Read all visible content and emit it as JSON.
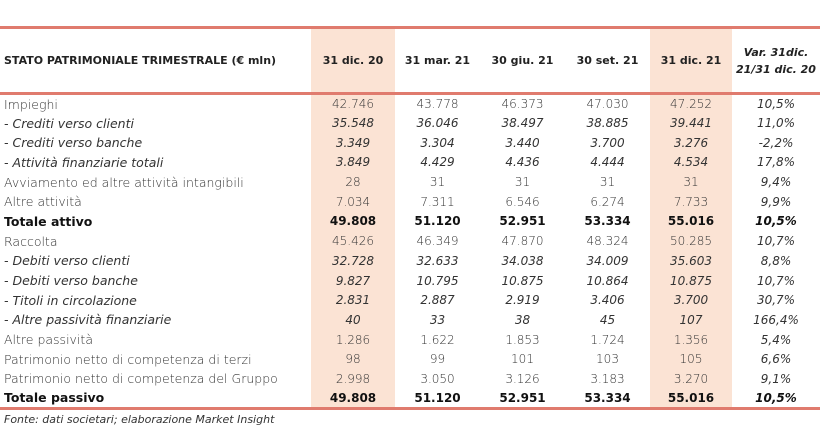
{
  "table": {
    "headers": [
      "STATO PATRIMONIALE TRIMESTRALE (€ mln)",
      "31 dic. 20",
      "31 mar. 21",
      "30 giu. 21",
      "30 set. 21",
      "31 dic. 21",
      "Var. 31dic. 21/31 dic. 20"
    ],
    "rows": [
      {
        "label": "Impieghi",
        "values": [
          "42.746",
          "43.778",
          "46.373",
          "47.030",
          "47.252",
          "10,5%"
        ],
        "style": "normal"
      },
      {
        "label": "- Crediti verso clienti",
        "values": [
          "35.548",
          "36.046",
          "38.497",
          "38.885",
          "39.441",
          "11,0%"
        ],
        "style": "sub"
      },
      {
        "label": "- Crediti verso banche",
        "values": [
          "3.349",
          "3.304",
          "3.440",
          "3.700",
          "3.276",
          "-2,2%"
        ],
        "style": "sub"
      },
      {
        "label": "- Attività finanziarie totali",
        "values": [
          "3.849",
          "4.429",
          "4.436",
          "4.444",
          "4.534",
          "17,8%"
        ],
        "style": "sub"
      },
      {
        "label": "Avviamento ed altre attività intangibili",
        "values": [
          "28",
          "31",
          "31",
          "31",
          "31",
          "9,4%"
        ],
        "style": "normal"
      },
      {
        "label": "Altre attività",
        "values": [
          "7.034",
          "7.311",
          "6.546",
          "6.274",
          "7.733",
          "9,9%"
        ],
        "style": "normal"
      },
      {
        "label": "Totale attivo",
        "values": [
          "49.808",
          "51.120",
          "52.951",
          "53.334",
          "55.016",
          "10,5%"
        ],
        "style": "total"
      },
      {
        "label": "Raccolta",
        "values": [
          "45.426",
          "46.349",
          "47.870",
          "48.324",
          "50.285",
          "10,7%"
        ],
        "style": "normal"
      },
      {
        "label": "- Debiti verso clienti",
        "values": [
          "32.728",
          "32.633",
          "34.038",
          "34.009",
          "35.603",
          "8,8%"
        ],
        "style": "sub"
      },
      {
        "label": "- Debiti verso banche",
        "values": [
          "9.827",
          "10.795",
          "10.875",
          "10.864",
          "10.875",
          "10,7%"
        ],
        "style": "sub"
      },
      {
        "label": "- Titoli in circolazione",
        "values": [
          "2.831",
          "2.887",
          "2.919",
          "3.406",
          "3.700",
          "30,7%"
        ],
        "style": "sub"
      },
      {
        "label": "- Altre passività finanziarie",
        "values": [
          "40",
          "33",
          "38",
          "45",
          "107",
          "166,4%"
        ],
        "style": "sub"
      },
      {
        "label": "Altre passività",
        "values": [
          "1.286",
          "1.622",
          "1.853",
          "1.724",
          "1.356",
          "5,4%"
        ],
        "style": "normal"
      },
      {
        "label": "Patrimonio netto di competenza di terzi",
        "values": [
          "98",
          "99",
          "101",
          "103",
          "105",
          "6,6%"
        ],
        "style": "normal"
      },
      {
        "label": "Patrimonio netto di competenza del Gruppo",
        "values": [
          "2.998",
          "3.050",
          "3.126",
          "3.183",
          "3.270",
          "9,1%"
        ],
        "style": "normal"
      },
      {
        "label": "Totale passivo",
        "values": [
          "49.808",
          "51.120",
          "52.951",
          "53.334",
          "55.016",
          "10,5%"
        ],
        "style": "total"
      }
    ]
  },
  "footnote": "Fonte: dati societari; elaborazione Market Insight",
  "colors": {
    "accent_line": "#e07b6e",
    "highlight_column": "#fbe3d4"
  }
}
